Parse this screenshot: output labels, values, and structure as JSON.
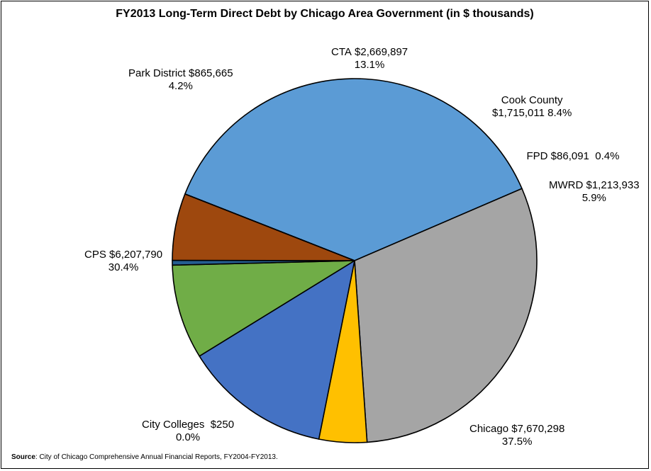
{
  "chart_data": {
    "type": "pie",
    "title": "FY2013 Long-Term Direct Debt by Chicago Area Government (in $ thousands)",
    "slices": [
      {
        "name": "Chicago",
        "value_label": "$7,670,298",
        "percent_label": "37.5%",
        "value": 7670298,
        "color": "#5b9bd5"
      },
      {
        "name": "CPS",
        "value_label": "$6,207,790",
        "percent_label": "30.4%",
        "value": 6207790,
        "color": "#a5a5a5"
      },
      {
        "name": "Park District",
        "value_label": "$865,665",
        "percent_label": "4.2%",
        "value": 865665,
        "color": "#ffc000"
      },
      {
        "name": "CTA",
        "value_label": "$2,669,897",
        "percent_label": "13.1%",
        "value": 2669897,
        "color": "#4472c4"
      },
      {
        "name": "Cook County",
        "value_label": "$1,715,011",
        "percent_label": "8.4%",
        "value": 1715011,
        "color": "#70ad47"
      },
      {
        "name": "FPD",
        "value_label": "$86,091",
        "percent_label": "0.4%",
        "value": 86091,
        "color": "#255e91"
      },
      {
        "name": "MWRD",
        "value_label": "$1,213,933",
        "percent_label": "5.9%",
        "value": 1213933,
        "color": "#9e480e"
      },
      {
        "name": "City Colleges",
        "value_label": "$250",
        "percent_label": "0.0%",
        "value": 250,
        "color": "#264478"
      }
    ]
  },
  "source": {
    "label": "Source",
    "text": ": City of Chicago Comprehensive Annual Financial Reports, FY2004-FY2013."
  }
}
